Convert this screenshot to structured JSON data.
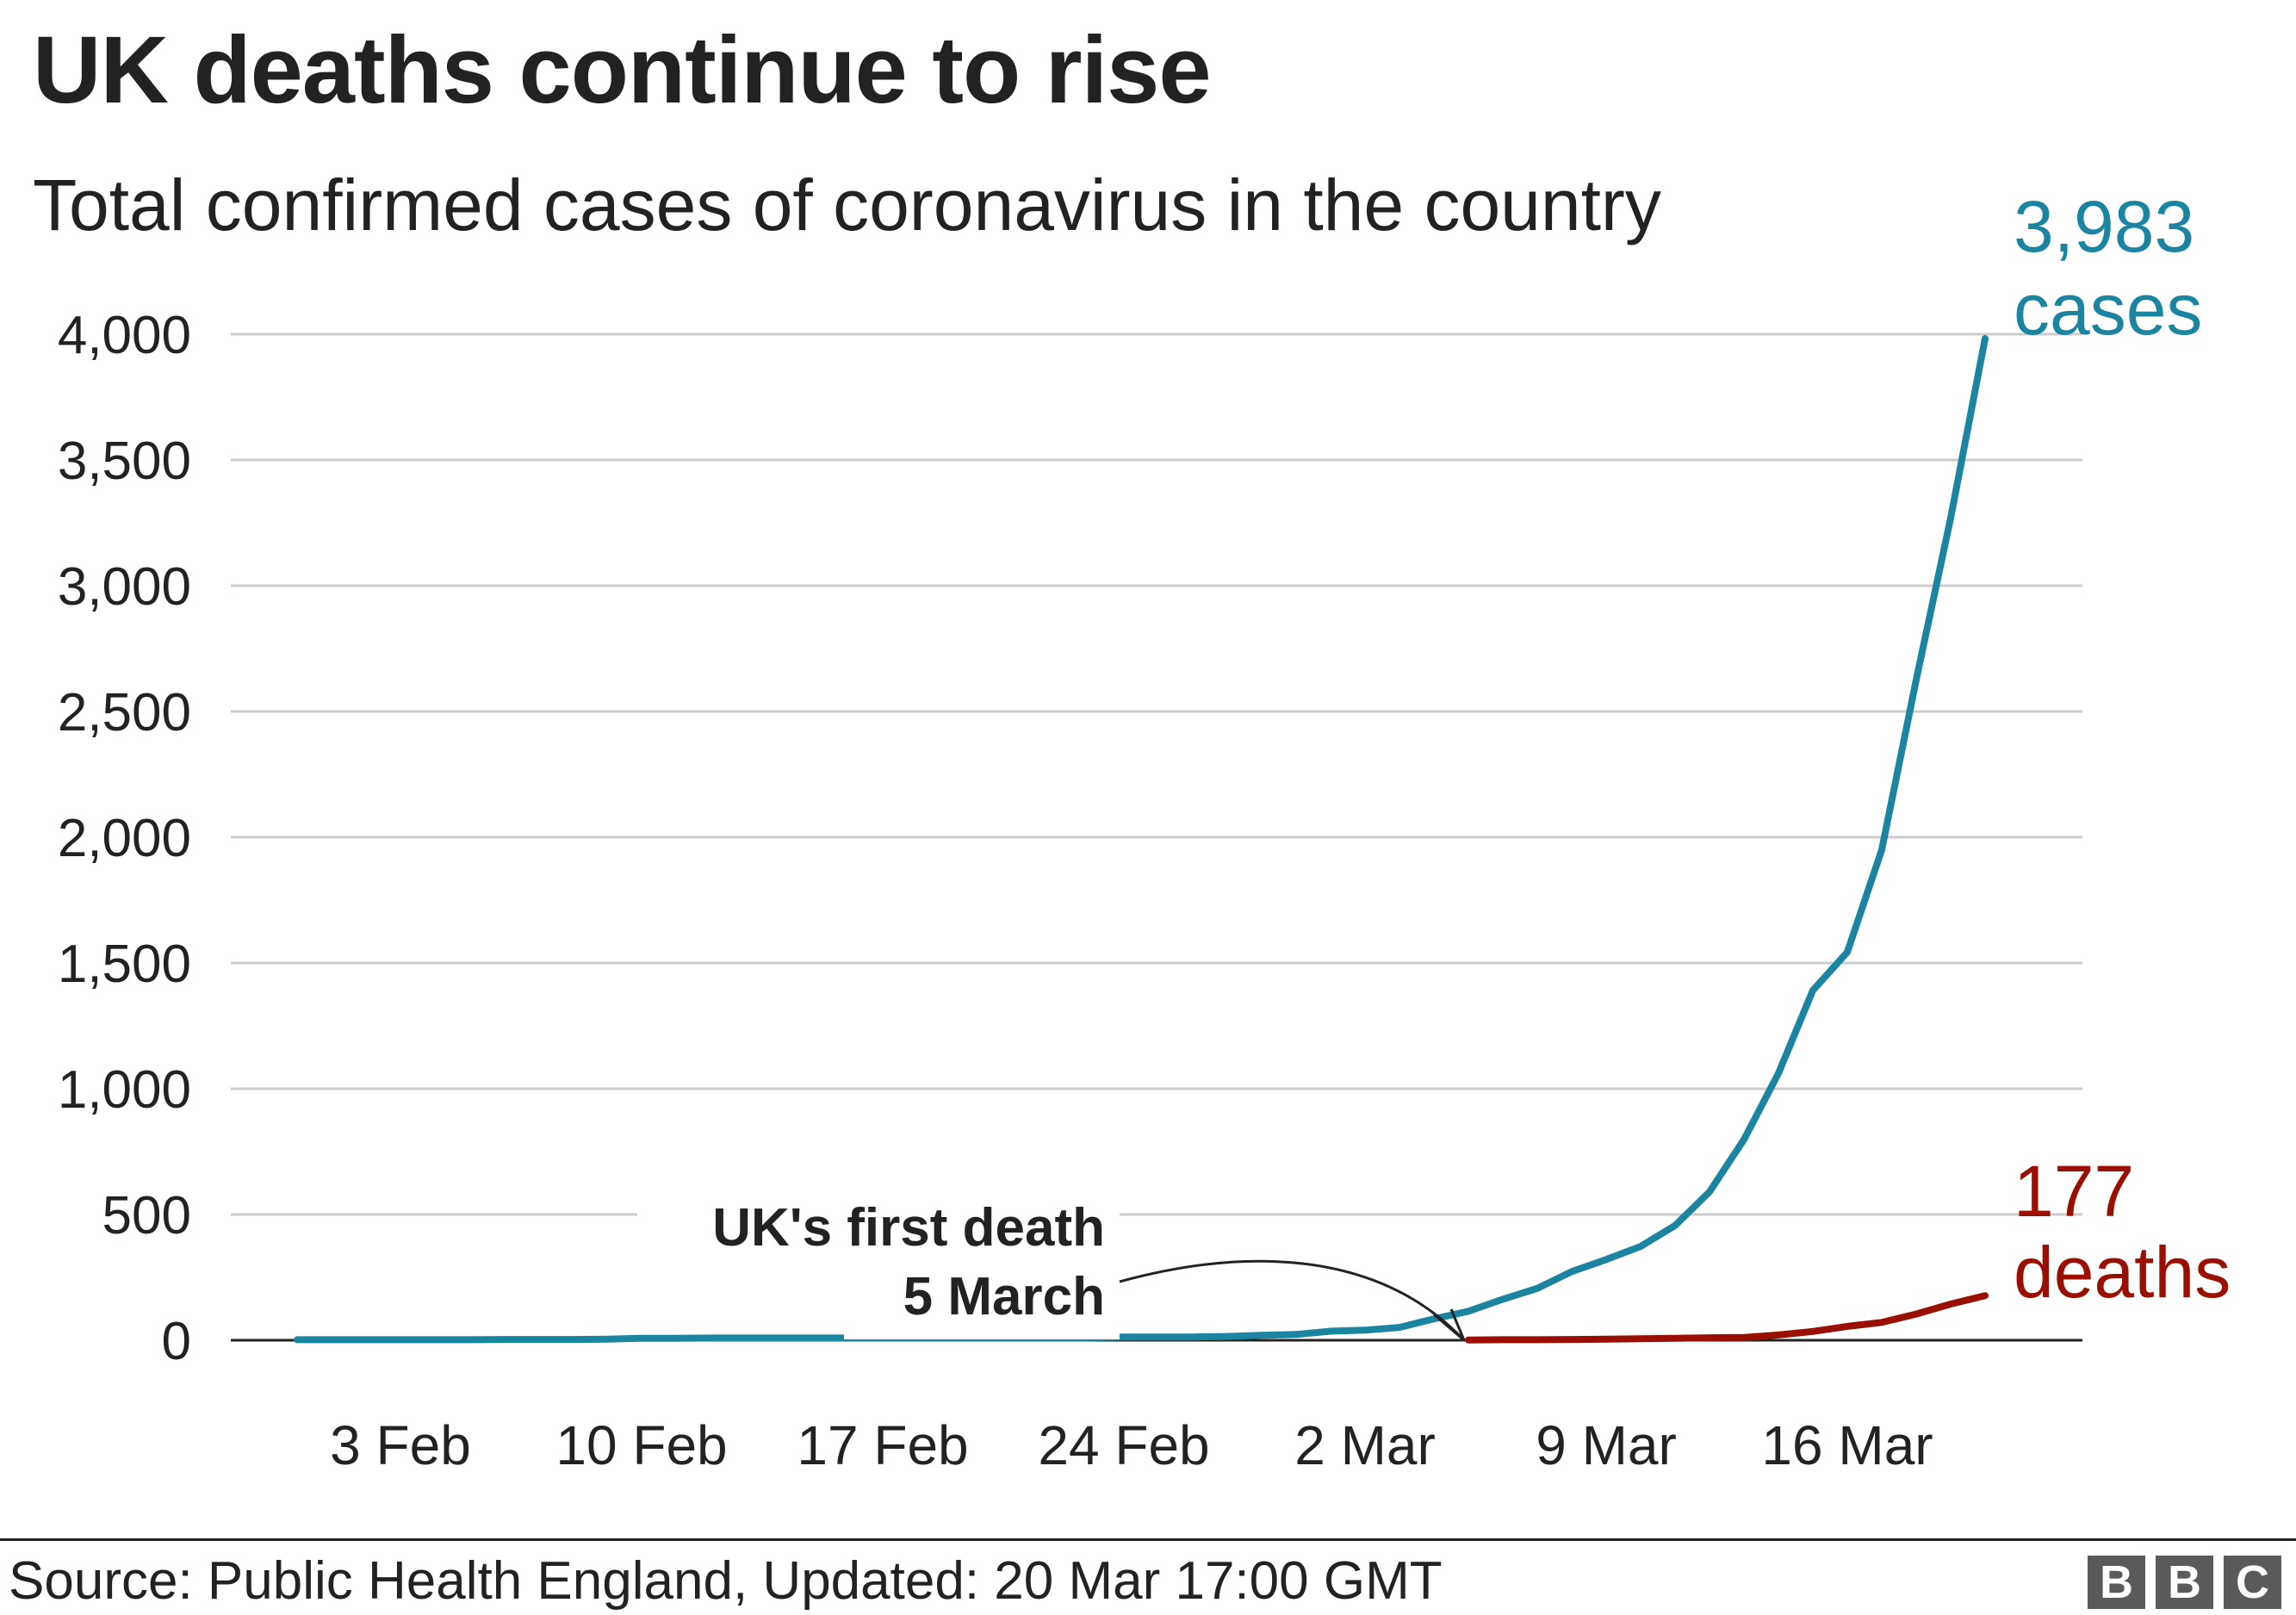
{
  "header": {
    "title": "UK deaths continue to rise",
    "subtitle": "Total confirmed cases of coronavirus in the country"
  },
  "footer": {
    "source": "Source: Public Health England, Updated: 20 Mar 17:00 GMT",
    "logo_letters": [
      "B",
      "B",
      "C"
    ]
  },
  "chart_data": {
    "type": "line",
    "title": "UK deaths continue to rise",
    "subtitle": "Total confirmed cases of coronavirus in the country",
    "xlabel": "",
    "ylabel": "",
    "x_range": [
      "2020-01-31",
      "2020-03-20"
    ],
    "ylim": [
      0,
      4000
    ],
    "yticks": [
      0,
      500,
      1000,
      1500,
      2000,
      2500,
      3000,
      3500,
      4000
    ],
    "ytick_labels": [
      "0",
      "500",
      "1,000",
      "1,500",
      "2,000",
      "2,500",
      "3,000",
      "3,500",
      "4,000"
    ],
    "xticks": [
      {
        "date": "2020-02-03",
        "label": "3 Feb"
      },
      {
        "date": "2020-02-10",
        "label": "10 Feb"
      },
      {
        "date": "2020-02-17",
        "label": "17 Feb"
      },
      {
        "date": "2020-02-24",
        "label": "24 Feb"
      },
      {
        "date": "2020-03-02",
        "label": "2 Mar"
      },
      {
        "date": "2020-03-09",
        "label": "9 Mar"
      },
      {
        "date": "2020-03-16",
        "label": "16 Mar"
      }
    ],
    "grid": true,
    "colors": {
      "cases": "#1b84a0",
      "deaths": "#990f02",
      "grid": "#cccccc",
      "axis": "#222222"
    },
    "series": [
      {
        "key": "cases",
        "color": "#1b84a0",
        "end_label": {
          "value": "3,983",
          "unit": "cases"
        },
        "points": [
          [
            "2020-01-31",
            2
          ],
          [
            "2020-02-01",
            2
          ],
          [
            "2020-02-02",
            2
          ],
          [
            "2020-02-03",
            2
          ],
          [
            "2020-02-04",
            2
          ],
          [
            "2020-02-05",
            2
          ],
          [
            "2020-02-06",
            3
          ],
          [
            "2020-02-07",
            3
          ],
          [
            "2020-02-08",
            3
          ],
          [
            "2020-02-09",
            4
          ],
          [
            "2020-02-10",
            8
          ],
          [
            "2020-02-11",
            8
          ],
          [
            "2020-02-12",
            9
          ],
          [
            "2020-02-13",
            9
          ],
          [
            "2020-02-14",
            9
          ],
          [
            "2020-02-15",
            9
          ],
          [
            "2020-02-16",
            9
          ],
          [
            "2020-02-17",
            9
          ],
          [
            "2020-02-18",
            9
          ],
          [
            "2020-02-19",
            9
          ],
          [
            "2020-02-20",
            9
          ],
          [
            "2020-02-21",
            9
          ],
          [
            "2020-02-22",
            9
          ],
          [
            "2020-02-23",
            9
          ],
          [
            "2020-02-24",
            13
          ],
          [
            "2020-02-25",
            13
          ],
          [
            "2020-02-26",
            13
          ],
          [
            "2020-02-27",
            15
          ],
          [
            "2020-02-28",
            20
          ],
          [
            "2020-02-29",
            23
          ],
          [
            "2020-03-01",
            36
          ],
          [
            "2020-03-02",
            40
          ],
          [
            "2020-03-03",
            51
          ],
          [
            "2020-03-04",
            85
          ],
          [
            "2020-03-05",
            115
          ],
          [
            "2020-03-06",
            163
          ],
          [
            "2020-03-07",
            206
          ],
          [
            "2020-03-08",
            273
          ],
          [
            "2020-03-09",
            321
          ],
          [
            "2020-03-10",
            373
          ],
          [
            "2020-03-11",
            456
          ],
          [
            "2020-03-12",
            590
          ],
          [
            "2020-03-13",
            798
          ],
          [
            "2020-03-14",
            1061
          ],
          [
            "2020-03-15",
            1391
          ],
          [
            "2020-03-16",
            1543
          ],
          [
            "2020-03-17",
            1950
          ],
          [
            "2020-03-18",
            2626
          ],
          [
            "2020-03-19",
            3269
          ],
          [
            "2020-03-20",
            3983
          ]
        ]
      },
      {
        "key": "deaths",
        "color": "#990f02",
        "end_label": {
          "value": "177",
          "unit": "deaths"
        },
        "points": [
          [
            "2020-03-05",
            1
          ],
          [
            "2020-03-06",
            2
          ],
          [
            "2020-03-07",
            2
          ],
          [
            "2020-03-08",
            3
          ],
          [
            "2020-03-09",
            4
          ],
          [
            "2020-03-10",
            6
          ],
          [
            "2020-03-11",
            8
          ],
          [
            "2020-03-12",
            10
          ],
          [
            "2020-03-13",
            11
          ],
          [
            "2020-03-14",
            21
          ],
          [
            "2020-03-15",
            35
          ],
          [
            "2020-03-16",
            55
          ],
          [
            "2020-03-17",
            71
          ],
          [
            "2020-03-18",
            104
          ],
          [
            "2020-03-19",
            144
          ],
          [
            "2020-03-20",
            177
          ]
        ]
      }
    ],
    "annotations": [
      {
        "lines": [
          "UK's first death",
          "5 March"
        ],
        "date": "2020-03-05",
        "value": 0
      }
    ]
  }
}
